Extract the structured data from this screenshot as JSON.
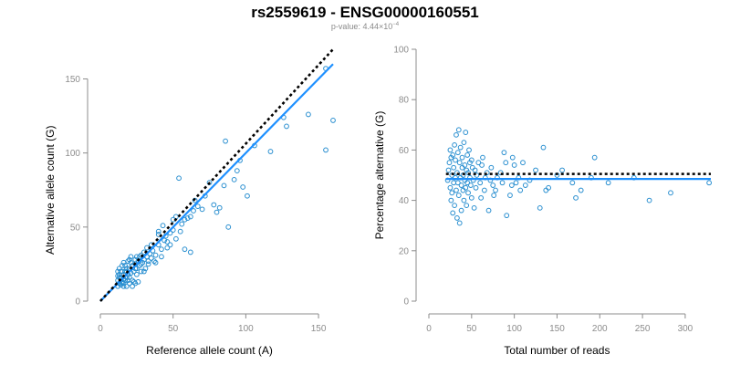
{
  "title": "rs2559619 - ENSG00000160551",
  "subtitle": {
    "prefix": "p-value: 4.44×10",
    "exponent": "−4"
  },
  "colors": {
    "points": "#2a8fd0",
    "fit": "#1e90ff",
    "reference": "#000000",
    "axis": "#8c8c8c"
  },
  "chart_data": [
    {
      "type": "scatter",
      "xlabel": "Reference allele count (A)",
      "ylabel": "Alternative allele count (G)",
      "xlim": [
        0,
        160
      ],
      "ylim": [
        0,
        170
      ],
      "xticks": [
        0,
        50,
        100,
        150
      ],
      "yticks": [
        0,
        50,
        100,
        150
      ],
      "fit_line": {
        "x": [
          0,
          160
        ],
        "y": [
          0,
          160
        ]
      },
      "reference_line": {
        "x": [
          0,
          160
        ],
        "y": [
          0,
          170
        ]
      },
      "points": [
        [
          12,
          10
        ],
        [
          13,
          12
        ],
        [
          14,
          11
        ],
        [
          12,
          14
        ],
        [
          15,
          13
        ],
        [
          16,
          12
        ],
        [
          14,
          16
        ],
        [
          13,
          18
        ],
        [
          15,
          20
        ],
        [
          16,
          15
        ],
        [
          17,
          14
        ],
        [
          18,
          16
        ],
        [
          16,
          18
        ],
        [
          17,
          20
        ],
        [
          18,
          22
        ],
        [
          19,
          18
        ],
        [
          20,
          16
        ],
        [
          21,
          19
        ],
        [
          20,
          22
        ],
        [
          22,
          24
        ],
        [
          21,
          26
        ],
        [
          23,
          20
        ],
        [
          24,
          22
        ],
        [
          22,
          14
        ],
        [
          25,
          18
        ],
        [
          24,
          25
        ],
        [
          26,
          27
        ],
        [
          25,
          30
        ],
        [
          27,
          24
        ],
        [
          28,
          20
        ],
        [
          29,
          26
        ],
        [
          30,
          28
        ],
        [
          31,
          22
        ],
        [
          32,
          30
        ],
        [
          28,
          31
        ],
        [
          33,
          27
        ],
        [
          34,
          32
        ],
        [
          35,
          29
        ],
        [
          36,
          34
        ],
        [
          38,
          31
        ],
        [
          37,
          27
        ],
        [
          40,
          38
        ],
        [
          42,
          35
        ],
        [
          44,
          41
        ],
        [
          46,
          36
        ],
        [
          48,
          46
        ],
        [
          45,
          44
        ],
        [
          50,
          48
        ],
        [
          52,
          42
        ],
        [
          54,
          83
        ],
        [
          56,
          52
        ],
        [
          58,
          55
        ],
        [
          55,
          47
        ],
        [
          60,
          56
        ],
        [
          62,
          57
        ],
        [
          64,
          61
        ],
        [
          65,
          68
        ],
        [
          67,
          64
        ],
        [
          70,
          62
        ],
        [
          72,
          71
        ],
        [
          75,
          80
        ],
        [
          78,
          65
        ],
        [
          80,
          60
        ],
        [
          82,
          63
        ],
        [
          85,
          78
        ],
        [
          86,
          108
        ],
        [
          88,
          50
        ],
        [
          92,
          82
        ],
        [
          94,
          88
        ],
        [
          96,
          95
        ],
        [
          98,
          77
        ],
        [
          101,
          71
        ],
        [
          106,
          105
        ],
        [
          117,
          101
        ],
        [
          126,
          124
        ],
        [
          128,
          118
        ],
        [
          143,
          126
        ],
        [
          155,
          102
        ],
        [
          160,
          122
        ],
        [
          155,
          157
        ],
        [
          12,
          20
        ],
        [
          13,
          22
        ],
        [
          14,
          15
        ],
        [
          12,
          17
        ],
        [
          15,
          12
        ],
        [
          16,
          10
        ],
        [
          13,
          16
        ],
        [
          14,
          20
        ],
        [
          15,
          24
        ],
        [
          16,
          26
        ],
        [
          18,
          10
        ],
        [
          19,
          14
        ],
        [
          20,
          12
        ],
        [
          22,
          10
        ],
        [
          17,
          24
        ],
        [
          19,
          27
        ],
        [
          21,
          30
        ],
        [
          23,
          13
        ],
        [
          24,
          12
        ],
        [
          18,
          20
        ],
        [
          20,
          28
        ],
        [
          25,
          22
        ],
        [
          26,
          13
        ],
        [
          24,
          28
        ],
        [
          27,
          30
        ],
        [
          28,
          25
        ],
        [
          30,
          20
        ],
        [
          33,
          25
        ],
        [
          35,
          38
        ],
        [
          38,
          26
        ],
        [
          40,
          45
        ],
        [
          42,
          30
        ],
        [
          46,
          40
        ],
        [
          48,
          38
        ],
        [
          50,
          55
        ],
        [
          52,
          57
        ],
        [
          58,
          35
        ],
        [
          62,
          33
        ],
        [
          40,
          47
        ],
        [
          43,
          51
        ],
        [
          30,
          33
        ],
        [
          32,
          36
        ]
      ]
    },
    {
      "type": "scatter",
      "xlabel": "Total number of reads",
      "ylabel": "Percentage alternative (G)",
      "xlim": [
        0,
        330
      ],
      "ylim": [
        0,
        100
      ],
      "xticks": [
        0,
        50,
        100,
        150,
        200,
        250,
        300
      ],
      "yticks": [
        0,
        20,
        40,
        60,
        80,
        100
      ],
      "fit_line": {
        "x": [
          20,
          330
        ],
        "y": [
          48.5,
          48.5
        ]
      },
      "reference_line": {
        "x": [
          20,
          330
        ],
        "y": [
          50.5,
          50.5
        ]
      },
      "points": [
        [
          22,
          48
        ],
        [
          23,
          52
        ],
        [
          24,
          55
        ],
        [
          25,
          45
        ],
        [
          25,
          60
        ],
        [
          26,
          40
        ],
        [
          26,
          57
        ],
        [
          27,
          50
        ],
        [
          27,
          43
        ],
        [
          28,
          58
        ],
        [
          28,
          35
        ],
        [
          29,
          47
        ],
        [
          29,
          53
        ],
        [
          30,
          62
        ],
        [
          30,
          38
        ],
        [
          31,
          49
        ],
        [
          31,
          56
        ],
        [
          32,
          44
        ],
        [
          32,
          66
        ],
        [
          33,
          51
        ],
        [
          33,
          33
        ],
        [
          34,
          47
        ],
        [
          34,
          59
        ],
        [
          35,
          68
        ],
        [
          35,
          42
        ],
        [
          36,
          55
        ],
        [
          36,
          31
        ],
        [
          37,
          49
        ],
        [
          37,
          61
        ],
        [
          38,
          46
        ],
        [
          38,
          36
        ],
        [
          39,
          53
        ],
        [
          39,
          57
        ],
        [
          40,
          44
        ],
        [
          40,
          50
        ],
        [
          41,
          63
        ],
        [
          41,
          40
        ],
        [
          42,
          48
        ],
        [
          42,
          54
        ],
        [
          43,
          67
        ],
        [
          43,
          45
        ],
        [
          44,
          52
        ],
        [
          44,
          38
        ],
        [
          45,
          58
        ],
        [
          45,
          47
        ],
        [
          46,
          43
        ],
        [
          46,
          51
        ],
        [
          47,
          60
        ],
        [
          48,
          49
        ],
        [
          48,
          55
        ],
        [
          49,
          46
        ],
        [
          50,
          56
        ],
        [
          50,
          41
        ],
        [
          51,
          53
        ],
        [
          52,
          48
        ],
        [
          53,
          37
        ],
        [
          54,
          52
        ],
        [
          55,
          45
        ],
        [
          56,
          50
        ],
        [
          58,
          55
        ],
        [
          60,
          47
        ],
        [
          61,
          41
        ],
        [
          62,
          54
        ],
        [
          63,
          57
        ],
        [
          65,
          44
        ],
        [
          66,
          49
        ],
        [
          68,
          51
        ],
        [
          70,
          36
        ],
        [
          72,
          48
        ],
        [
          73,
          53
        ],
        [
          75,
          46
        ],
        [
          76,
          42
        ],
        [
          78,
          44
        ],
        [
          80,
          49
        ],
        [
          84,
          51
        ],
        [
          86,
          47
        ],
        [
          88,
          59
        ],
        [
          90,
          55
        ],
        [
          91,
          34
        ],
        [
          95,
          42
        ],
        [
          97,
          46
        ],
        [
          98,
          57
        ],
        [
          100,
          54
        ],
        [
          102,
          47
        ],
        [
          105,
          49
        ],
        [
          107,
          44
        ],
        [
          110,
          55
        ],
        [
          113,
          46
        ],
        [
          118,
          48
        ],
        [
          125,
          52
        ],
        [
          130,
          37
        ],
        [
          134,
          61
        ],
        [
          137,
          44
        ],
        [
          140,
          45
        ],
        [
          150,
          50
        ],
        [
          156,
          52
        ],
        [
          168,
          47
        ],
        [
          172,
          41
        ],
        [
          178,
          44
        ],
        [
          190,
          49
        ],
        [
          194,
          57
        ],
        [
          210,
          47
        ],
        [
          240,
          49
        ],
        [
          258,
          40
        ],
        [
          283,
          43
        ],
        [
          328,
          47
        ]
      ]
    }
  ]
}
